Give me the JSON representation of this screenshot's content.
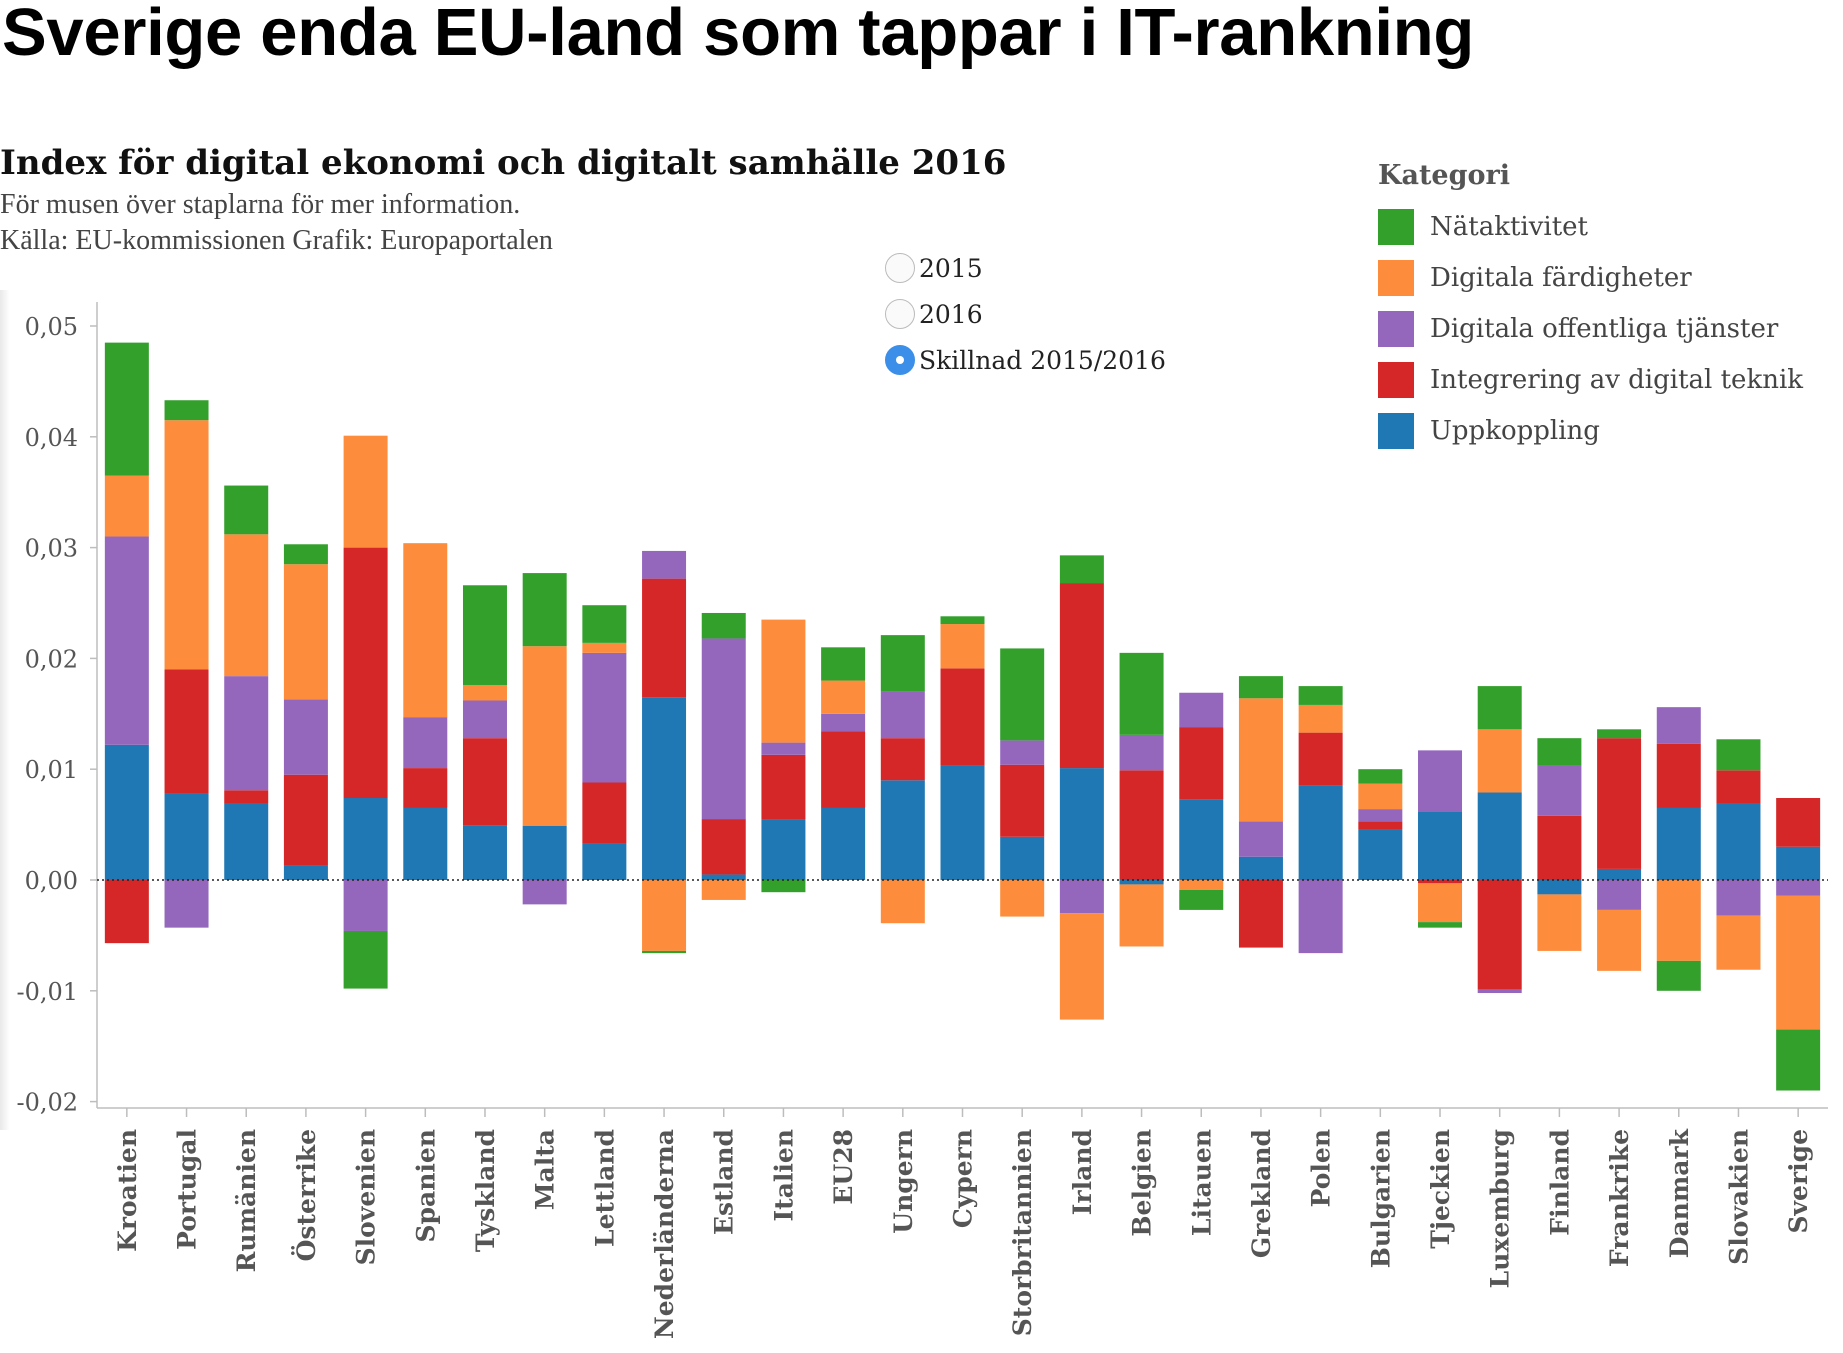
{
  "headline": "Sverige enda EU-land som tappar i IT-rankning",
  "chart_title": "Index för digital ekonomi och digitalt samhälle 2016",
  "hover_note": "För musen över staplarna för mer information.",
  "source_note": "Källa: EU-kommissionen Grafik: Europaportalen",
  "radio_options": [
    {
      "label": "2015",
      "checked": false
    },
    {
      "label": "2016",
      "checked": false
    },
    {
      "label": "Skillnad 2015/2016",
      "checked": true
    }
  ],
  "legend": {
    "title": "Kategori",
    "items": [
      {
        "label": "Nätaktivitet",
        "color": "#33a02c"
      },
      {
        "label": "Digitala färdigheter",
        "color": "#fd8d3c"
      },
      {
        "label": "Digitala offentliga tjänster",
        "color": "#9467bd"
      },
      {
        "label": "Integrering av digital teknik",
        "color": "#d62728"
      },
      {
        "label": "Uppkoppling",
        "color": "#1f77b4"
      }
    ]
  },
  "chart_data": {
    "type": "bar",
    "stacked": true,
    "ylim": [
      -0.02,
      0.05
    ],
    "yticks": [
      {
        "value": 0.05,
        "label": "0,05"
      },
      {
        "value": 0.04,
        "label": "0,04"
      },
      {
        "value": 0.03,
        "label": "0,03"
      },
      {
        "value": 0.02,
        "label": "0,02"
      },
      {
        "value": 0.01,
        "label": "0,01"
      },
      {
        "value": 0.0,
        "label": "0,00"
      },
      {
        "value": -0.01,
        "label": "-0,01"
      },
      {
        "value": -0.02,
        "label": "-0,02"
      }
    ],
    "categories": [
      "Kroatien",
      "Portugal",
      "Rumänien",
      "Österrike",
      "Slovenien",
      "Spanien",
      "Tyskland",
      "Malta",
      "Lettland",
      "Nederländerna",
      "Estland",
      "Italien",
      "EU28",
      "Ungern",
      "Cypern",
      "Storbritannien",
      "Irland",
      "Belgien",
      "Litauen",
      "Grekland",
      "Polen",
      "Bulgarien",
      "Tjeckien",
      "Luxemburg",
      "Finland",
      "Frankrike",
      "Danmark",
      "Slovakien",
      "Sverige"
    ],
    "series": [
      {
        "name": "Uppkoppling",
        "color": "#1f77b4",
        "values": [
          0.0122,
          0.0078,
          0.0069,
          0.0013,
          0.0074,
          0.0065,
          0.0049,
          0.0049,
          0.0033,
          0.0165,
          0.0005,
          0.0055,
          0.0065,
          0.009,
          0.0103,
          0.0039,
          0.0101,
          -0.0004,
          0.0073,
          0.0021,
          0.0085,
          0.0046,
          0.0062,
          0.0079,
          -0.0013,
          0.001,
          0.0065,
          0.0069,
          0.003
        ]
      },
      {
        "name": "Integrering av digital teknik",
        "color": "#d62728",
        "values": [
          -0.0057,
          0.0112,
          0.0012,
          0.0082,
          0.0226,
          0.0036,
          0.0079,
          0.0,
          0.0055,
          0.0107,
          0.005,
          0.0058,
          0.0069,
          0.0038,
          0.0088,
          0.0065,
          0.0167,
          0.0099,
          0.0065,
          -0.0061,
          0.0048,
          0.0007,
          -0.0003,
          -0.0099,
          0.0058,
          0.0118,
          0.0058,
          0.003,
          0.0044
        ]
      },
      {
        "name": "Digitala offentliga tjänster",
        "color": "#9467bd",
        "values": [
          0.0188,
          -0.0043,
          0.0103,
          0.0068,
          -0.0046,
          0.0046,
          0.0034,
          -0.0022,
          0.0117,
          0.0025,
          0.0163,
          0.0011,
          0.0016,
          0.0042,
          0.0,
          0.0022,
          -0.003,
          0.0032,
          0.0031,
          0.0032,
          -0.0066,
          0.0011,
          0.0055,
          -0.0003,
          0.0045,
          -0.0027,
          0.0033,
          -0.0032,
          -0.0014
        ]
      },
      {
        "name": "Digitala färdigheter",
        "color": "#fd8d3c",
        "values": [
          0.0055,
          0.0225,
          0.0128,
          0.0122,
          0.0101,
          0.0157,
          0.0014,
          0.0162,
          0.0009,
          -0.0064,
          -0.0018,
          0.0111,
          0.003,
          -0.0039,
          0.004,
          -0.0033,
          -0.0096,
          -0.0056,
          -0.0009,
          0.0111,
          0.0025,
          0.0023,
          -0.0035,
          0.0057,
          -0.0051,
          -0.0055,
          -0.0073,
          -0.0049,
          -0.0121
        ]
      },
      {
        "name": "Nätaktivitet",
        "color": "#33a02c",
        "values": [
          0.012,
          0.0018,
          0.0044,
          0.0018,
          -0.0052,
          0.0,
          0.009,
          0.0066,
          0.0034,
          -0.0002,
          0.0023,
          -0.0011,
          0.003,
          0.0051,
          0.0007,
          0.0083,
          0.0025,
          0.0074,
          -0.0018,
          0.002,
          0.0017,
          0.0013,
          -0.0005,
          0.0039,
          0.0025,
          0.0008,
          -0.0027,
          0.0028,
          -0.0055
        ]
      }
    ]
  }
}
